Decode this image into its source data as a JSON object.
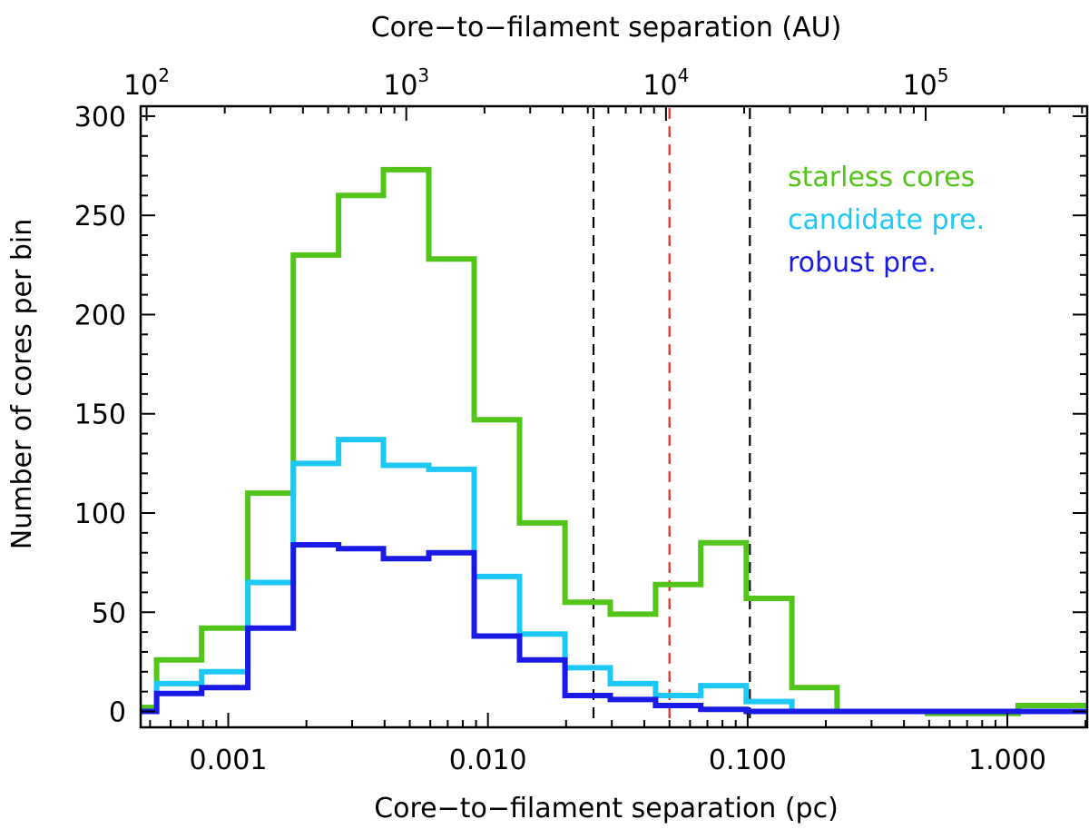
{
  "chart_data": {
    "type": "histogram",
    "xscale": "log",
    "xlabel": "Core−to−filament separation (pc)",
    "x2label": "Core−to−filament separation (AU)",
    "ylabel": "Number of cores per bin",
    "xlim": [
      0.00046,
      2.03
    ],
    "ylim": [
      -8,
      305
    ],
    "x_ticks": [
      {
        "value": 0.001,
        "label": "0.001"
      },
      {
        "value": 0.01,
        "label": "0.010"
      },
      {
        "value": 0.1,
        "label": "0.100"
      },
      {
        "value": 1.0,
        "label": "1.000"
      }
    ],
    "x2_ticks": [
      {
        "value_au": 100,
        "label_base": "10",
        "label_exp": "2"
      },
      {
        "value_au": 1000,
        "label_base": "10",
        "label_exp": "3"
      },
      {
        "value_au": 10000,
        "label_base": "10",
        "label_exp": "4"
      },
      {
        "value_au": 100000,
        "label_base": "10",
        "label_exp": "5"
      }
    ],
    "y_ticks": [
      0,
      50,
      100,
      150,
      200,
      250,
      300
    ],
    "bin_edges": [
      0.00046,
      0.00053,
      0.00079,
      0.00119,
      0.00178,
      0.00266,
      0.00396,
      0.00592,
      0.00885,
      0.01323,
      0.0198,
      0.0296,
      0.0442,
      0.066,
      0.0988,
      0.148,
      0.221,
      0.493,
      1.1,
      2.03
    ],
    "series": [
      {
        "name": "starless cores",
        "color": "#52c41a",
        "values": [
          2,
          26,
          42,
          110,
          230,
          260,
          273,
          228,
          147,
          95,
          55,
          49,
          64,
          85,
          57,
          12,
          0,
          -1,
          3
        ]
      },
      {
        "name": "candidate pre.",
        "color": "#1ec8f5",
        "values": [
          0,
          14,
          20,
          65,
          125,
          137,
          124,
          122,
          68,
          39,
          22,
          14,
          8,
          13,
          5,
          0,
          0,
          0,
          0
        ]
      },
      {
        "name": "robust pre.",
        "color": "#1a1ae6",
        "values": [
          0,
          9,
          12,
          42,
          84,
          82,
          77,
          80,
          38,
          26,
          8,
          6,
          3,
          1,
          0,
          0,
          0,
          0,
          0
        ]
      }
    ],
    "reference_lines": [
      {
        "x": 0.0255,
        "color": "#000000"
      },
      {
        "x": 0.05,
        "color": "#e8271f"
      },
      {
        "x": 0.102,
        "color": "#000000"
      }
    ],
    "legend_position": "top-right"
  }
}
